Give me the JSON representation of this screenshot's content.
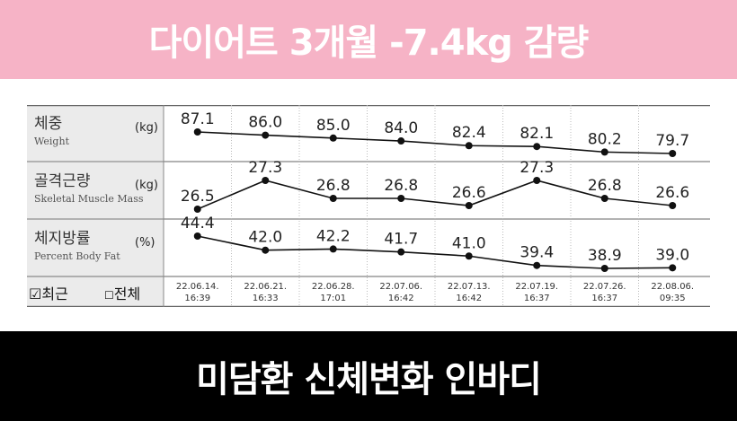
{
  "header": {
    "title": "다이어트 3개월 -7.4kg 감량"
  },
  "footer": {
    "title": "미담환 신체변화 인바디"
  },
  "rows": [
    {
      "ko": "체중",
      "en": "Weight",
      "unit": "(kg)"
    },
    {
      "ko": "골격근량",
      "en": "Skeletal Muscle Mass",
      "unit": "(kg)"
    },
    {
      "ko": "체지방률",
      "en": "Percent Body Fat",
      "unit": "(%)"
    }
  ],
  "options": {
    "recent_label": "최근",
    "all_label": "전체",
    "recent_mark": "☑",
    "all_mark": "☐"
  },
  "chart_data": {
    "type": "line",
    "x": [
      "22.06.14. 16:39",
      "22.06.21. 16:33",
      "22.06.28. 17:01",
      "22.07.06. 16:42",
      "22.07.13. 16:42",
      "22.07.19. 16:37",
      "22.07.26. 16:37",
      "22.08.06. 09:35"
    ],
    "date_lines": [
      [
        "22.06.14.",
        "16:39"
      ],
      [
        "22.06.21.",
        "16:33"
      ],
      [
        "22.06.28.",
        "17:01"
      ],
      [
        "22.07.06.",
        "16:42"
      ],
      [
        "22.07.13.",
        "16:42"
      ],
      [
        "22.07.19.",
        "16:37"
      ],
      [
        "22.07.26.",
        "16:37"
      ],
      [
        "22.08.06.",
        "09:35"
      ]
    ],
    "series": [
      {
        "name": "체중",
        "values": [
          87.1,
          86.0,
          85.0,
          84.0,
          82.4,
          82.1,
          80.2,
          79.7
        ],
        "labels": [
          "87.1",
          "86.0",
          "85.0",
          "84.0",
          "82.4",
          "82.1",
          "80.2",
          "79.7"
        ]
      },
      {
        "name": "골격근량",
        "values": [
          26.5,
          27.3,
          26.8,
          26.8,
          26.6,
          27.3,
          26.8,
          26.6
        ],
        "labels": [
          "26.5",
          "27.3",
          "26.8",
          "26.8",
          "26.6",
          "27.3",
          "26.8",
          "26.6"
        ]
      },
      {
        "name": "체지방률",
        "values": [
          44.4,
          42.0,
          42.2,
          41.7,
          41.0,
          39.4,
          38.9,
          39.0
        ],
        "labels": [
          "44.4",
          "42.0",
          "42.2",
          "41.7",
          "41.0",
          "39.4",
          "38.9",
          "39.0"
        ]
      }
    ],
    "colors": {
      "line": "#111111",
      "grid": "#bbbbbb",
      "label_bg": "#ebebeb",
      "border": "#999999"
    }
  }
}
